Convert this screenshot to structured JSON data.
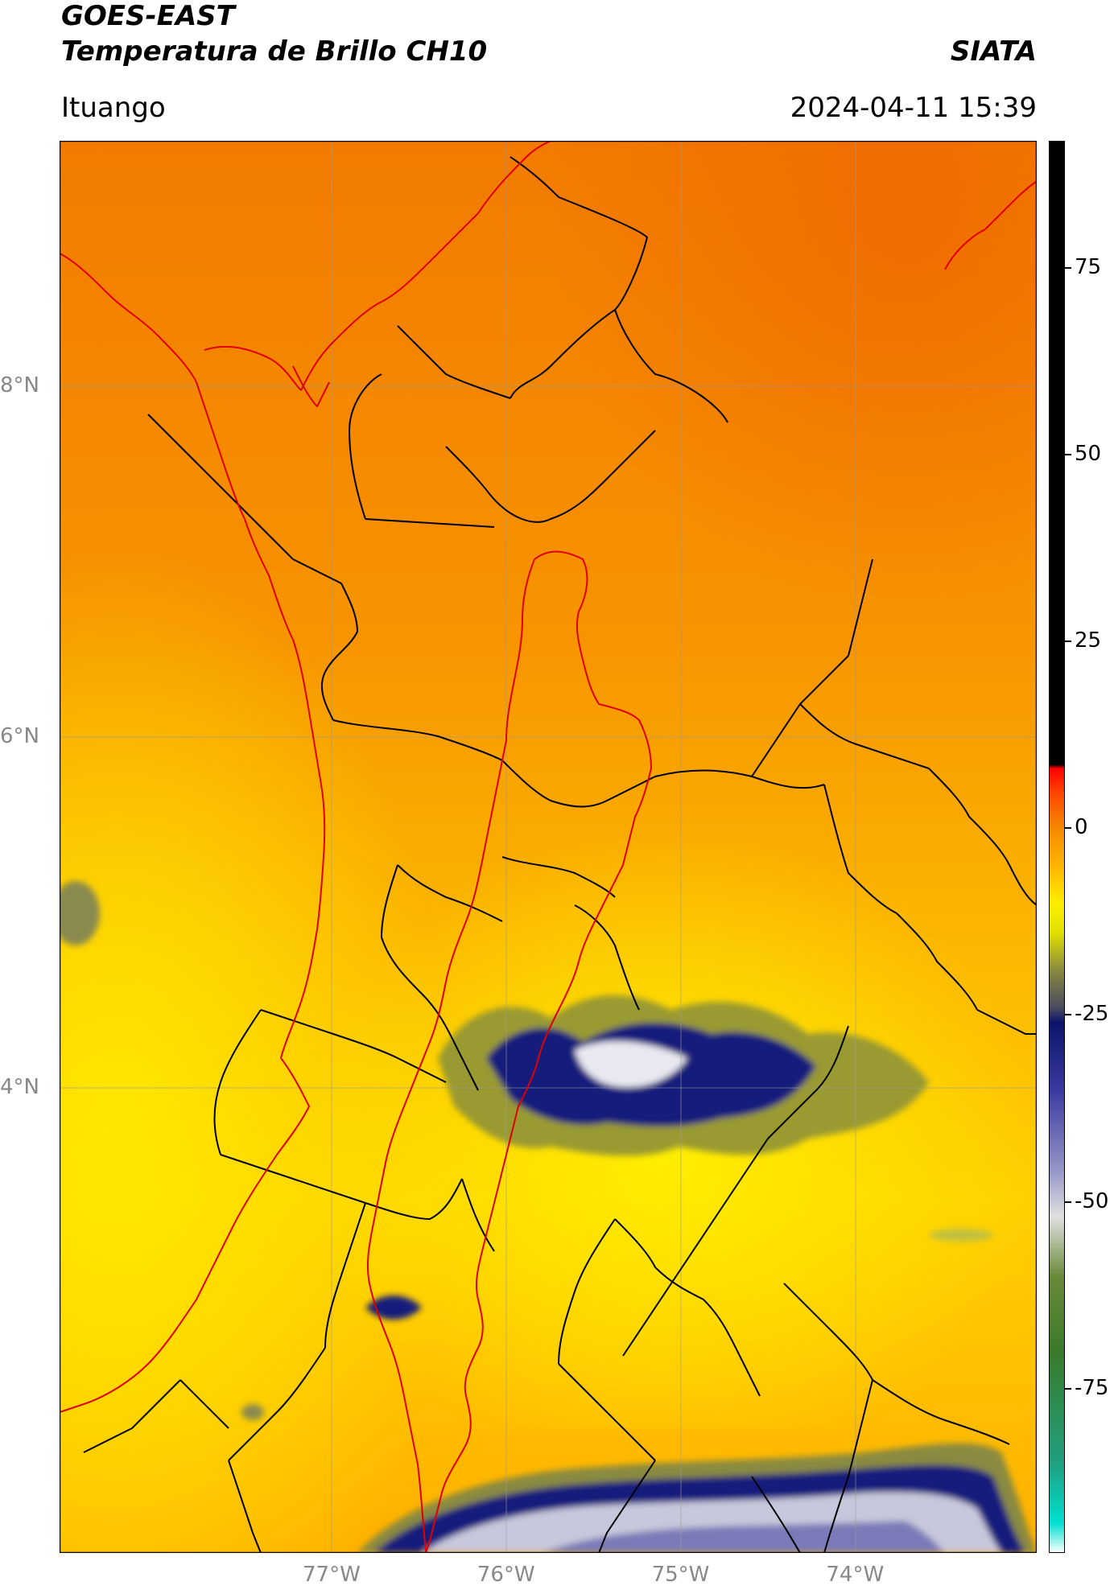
{
  "header": {
    "title_line1": "GOES-EAST",
    "title_line2": "Temperatura de Brillo CH10",
    "organization": "SIATA",
    "location": "Ituango",
    "timestamp": "2024-04-11 15:39"
  },
  "map": {
    "lon_range": [
      -78.55,
      -72.95
    ],
    "lat_range": [
      1.35,
      9.4
    ],
    "x_ticks": [
      {
        "value": -77,
        "label": "77°W"
      },
      {
        "value": -76,
        "label": "76°W"
      },
      {
        "value": -75,
        "label": "75°W"
      },
      {
        "value": -74,
        "label": "74°W"
      }
    ],
    "y_ticks": [
      {
        "value": 8,
        "label": "8°N"
      },
      {
        "value": 6,
        "label": "6°N"
      },
      {
        "value": 4,
        "label": "4°N"
      }
    ],
    "gridlines": true,
    "colors": {
      "orange": "#f28a00",
      "yellow": "#ffe600",
      "navy": "#101a7a",
      "coastline": "#e00000",
      "border": "#000000",
      "gridline": "#9a9a9a"
    }
  },
  "colorbar": {
    "range": [
      -97,
      92
    ],
    "ticks": [
      75,
      50,
      25,
      0,
      -25,
      -50,
      -75
    ],
    "stops": [
      {
        "value": -97,
        "color": "#ffffff"
      },
      {
        "value": -93,
        "color": "#00e0d0"
      },
      {
        "value": -85,
        "color": "#20a080"
      },
      {
        "value": -70,
        "color": "#3a7a2a"
      },
      {
        "value": -60,
        "color": "#6a8a3a"
      },
      {
        "value": -52,
        "color": "#e0e0e0"
      },
      {
        "value": -46,
        "color": "#9898c8"
      },
      {
        "value": -35,
        "color": "#3a3aa0"
      },
      {
        "value": -26,
        "color": "#0c1468"
      },
      {
        "value": -24,
        "color": "#4a4a60"
      },
      {
        "value": -19,
        "color": "#8a8a40"
      },
      {
        "value": -14,
        "color": "#e0e000"
      },
      {
        "value": -10,
        "color": "#ffee00"
      },
      {
        "value": -5,
        "color": "#ffb300"
      },
      {
        "value": 0,
        "color": "#f58a00"
      },
      {
        "value": 5,
        "color": "#ff4000"
      },
      {
        "value": 8,
        "color": "#ff0000"
      },
      {
        "value": 8.5,
        "color": "#000000"
      },
      {
        "value": 92,
        "color": "#000000"
      }
    ]
  }
}
